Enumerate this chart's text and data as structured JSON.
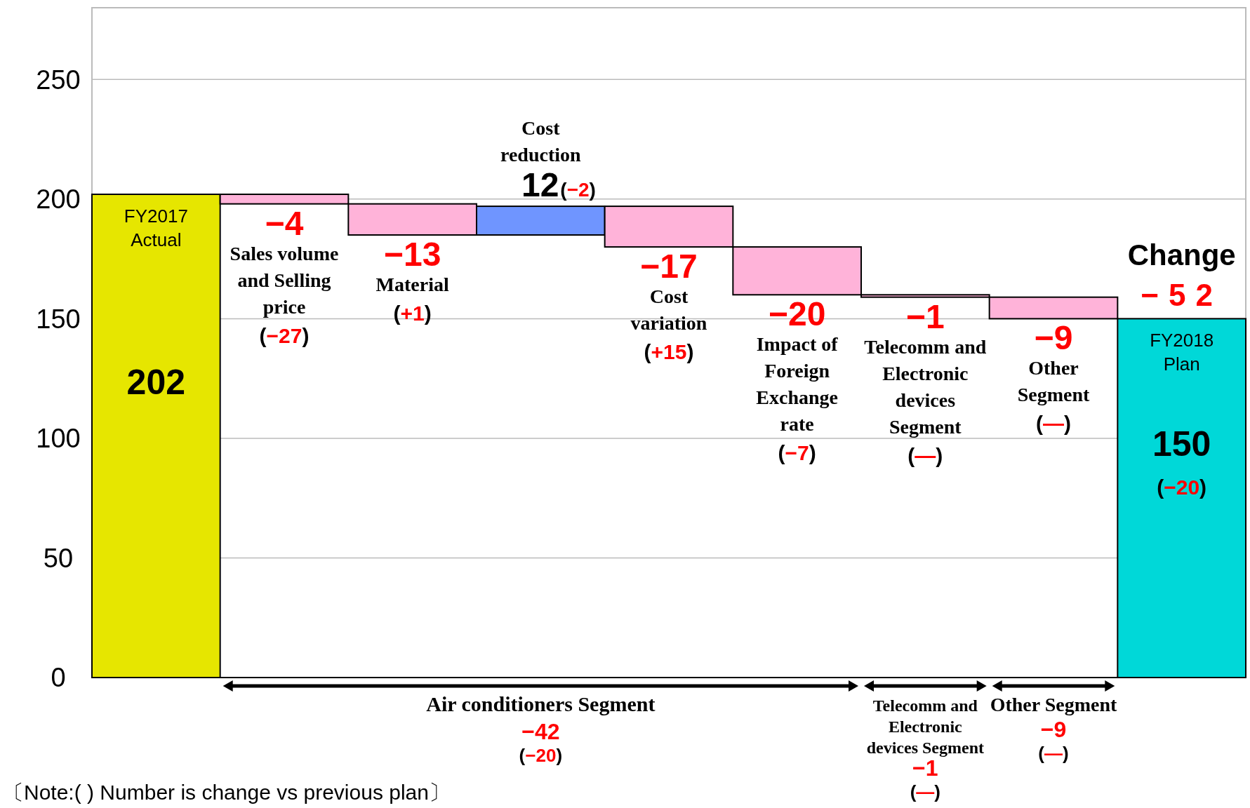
{
  "chart_data": {
    "type": "bar",
    "categories": [
      "FY2017 Actual",
      "Sales volume and Selling price",
      "Material",
      "Cost reduction",
      "Cost variation",
      "Impact of Foreign Exchange rate",
      "Telecomm and Electronic devices Segment",
      "Other Segment",
      "FY2018 Plan"
    ],
    "values": [
      202,
      -4,
      -13,
      12,
      -17,
      -20,
      -1,
      -9,
      150
    ],
    "base": [
      0,
      202,
      198,
      185,
      197,
      180,
      160,
      159,
      0
    ],
    "colors": [
      "#e6e600",
      "#ffb3d9",
      "#ffb3d9",
      "#6f95ff",
      "#ffb3d9",
      "#ffb3d9",
      "#ffb3d9",
      "#ffb3d9",
      "#00d8d8"
    ],
    "value_labels": [
      "202",
      "−4",
      "−13",
      "12",
      "−17",
      "−20",
      "−1",
      "−9",
      "150"
    ],
    "ylim": [
      0,
      280
    ],
    "yticks": [
      0,
      50,
      100,
      150,
      200,
      250
    ],
    "grid": "y",
    "annotations": [
      "(−27)",
      "(+1)",
      "(−2)",
      "(+15)",
      "(−7)",
      "(—)",
      "(—)",
      "(−20)",
      "Air conditioners Segment",
      "−42",
      "(−20)",
      "Telecomm and Electronic devices Segment",
      "−1",
      "(—)",
      "Other Segment",
      "−9",
      "(—)",
      "Change",
      "−52",
      "〔Note:( ) Number is change vs previous plan〕"
    ]
  }
}
